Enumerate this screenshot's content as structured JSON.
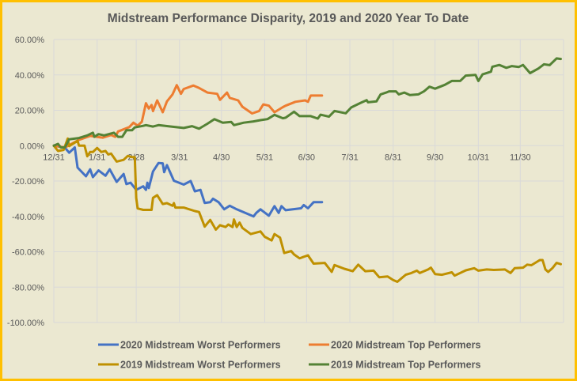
{
  "chart_data": {
    "type": "line",
    "title": "Midstream Performance Disparity, 2019 and 2020 Year To Date",
    "xlabel": "",
    "ylabel": "",
    "x_ticks": [
      "12/31",
      "1/31",
      "2/28",
      "3/31",
      "4/30",
      "5/31",
      "6/30",
      "7/31",
      "8/31",
      "9/30",
      "10/31",
      "11/30"
    ],
    "y_ticks": [
      "60.00%",
      "40.00%",
      "20.00%",
      "0.00%",
      "-20.00%",
      "-40.00%",
      "-60.00%",
      "-80.00%",
      "-100.00%"
    ],
    "ylim": [
      -100,
      60
    ],
    "y_unit": "%",
    "grid": true,
    "legend_position": "bottom",
    "series": [
      {
        "name": "2020 Midstream Worst Performers",
        "color": "#4472c4",
        "points": [
          [
            "12/31",
            0
          ],
          [
            "1/8",
            -1.2
          ],
          [
            "1/11",
            -4
          ],
          [
            "1/15",
            -1
          ],
          [
            "1/17",
            -12.4
          ],
          [
            "1/23",
            -17.3
          ],
          [
            "1/26",
            -13.4
          ],
          [
            "1/28",
            -17.8
          ],
          [
            "2/1",
            -14
          ],
          [
            "2/6",
            -17
          ],
          [
            "2/9",
            -13.4
          ],
          [
            "2/14",
            -20.5
          ],
          [
            "2/19",
            -16
          ],
          [
            "2/21",
            -21.7
          ],
          [
            "2/24",
            -21
          ],
          [
            "2/28",
            -25
          ],
          [
            "3/5",
            -23
          ],
          [
            "3/7",
            -25
          ],
          [
            "3/8",
            -21
          ],
          [
            "3/9",
            -24
          ],
          [
            "3/12",
            -14.6
          ],
          [
            "3/16",
            -9.8
          ],
          [
            "3/19",
            -10
          ],
          [
            "3/20",
            -15
          ],
          [
            "3/22",
            -11
          ],
          [
            "3/27",
            -19.8
          ],
          [
            "4/3",
            -22
          ],
          [
            "4/8",
            -20
          ],
          [
            "4/11",
            -25.8
          ],
          [
            "4/15",
            -25
          ],
          [
            "4/18",
            -32.4
          ],
          [
            "4/22",
            -32
          ],
          [
            "4/24",
            -30
          ],
          [
            "4/28",
            -32
          ],
          [
            "5/2",
            -36
          ],
          [
            "5/6",
            -34
          ],
          [
            "5/11",
            -36
          ],
          [
            "5/17",
            -38
          ],
          [
            "5/23",
            -40
          ],
          [
            "5/25",
            -38
          ],
          [
            "5/28",
            -36
          ],
          [
            "6/3",
            -39.6
          ],
          [
            "6/7",
            -34.2
          ],
          [
            "6/10",
            -38
          ],
          [
            "6/12",
            -34.2
          ],
          [
            "6/15",
            -36.5
          ],
          [
            "6/26",
            -35.4
          ],
          [
            "6/28",
            -33.6
          ],
          [
            "7/1",
            -35.4
          ],
          [
            "7/5",
            -32
          ],
          [
            "7/11",
            -32
          ]
        ]
      },
      {
        "name": "2020 Midstream Top Performers",
        "color": "#ed7d31",
        "points": [
          [
            "12/31",
            0
          ],
          [
            "1/8",
            -1
          ],
          [
            "1/18",
            3.3
          ],
          [
            "1/26",
            5.5
          ],
          [
            "2/4",
            4.5
          ],
          [
            "2/10",
            6
          ],
          [
            "2/13",
            5
          ],
          [
            "2/15",
            8
          ],
          [
            "2/23",
            10.5
          ],
          [
            "2/26",
            13
          ],
          [
            "3/1",
            11.3
          ],
          [
            "3/4",
            13.5
          ],
          [
            "3/7",
            24
          ],
          [
            "3/9",
            21
          ],
          [
            "3/11",
            23
          ],
          [
            "3/12",
            19.5
          ],
          [
            "3/15",
            25.6
          ],
          [
            "3/19",
            18.9
          ],
          [
            "3/22",
            25
          ],
          [
            "3/26",
            29
          ],
          [
            "3/29",
            34.2
          ],
          [
            "4/1",
            29.3
          ],
          [
            "4/3",
            32
          ],
          [
            "4/10",
            34
          ],
          [
            "4/14",
            32.6
          ],
          [
            "4/20",
            30
          ],
          [
            "4/27",
            29.3
          ],
          [
            "4/29",
            25.9
          ],
          [
            "5/4",
            30
          ],
          [
            "5/6",
            27
          ],
          [
            "5/12",
            25.6
          ],
          [
            "5/15",
            22
          ],
          [
            "5/22",
            18.2
          ],
          [
            "5/27",
            19.6
          ],
          [
            "5/30",
            23.3
          ],
          [
            "6/3",
            22.6
          ],
          [
            "6/7",
            18.9
          ],
          [
            "6/13",
            21.8
          ],
          [
            "6/15",
            22.6
          ],
          [
            "6/22",
            24.8
          ],
          [
            "6/29",
            25.6
          ],
          [
            "7/1",
            24.8
          ],
          [
            "7/3",
            28.3
          ],
          [
            "7/11",
            28.3
          ]
        ]
      },
      {
        "name": "2019 Midstream Worst Performers",
        "color": "#bf9000",
        "points": [
          [
            "12/31",
            0
          ],
          [
            "1/3",
            -3
          ],
          [
            "1/7",
            -2.4
          ],
          [
            "1/10",
            4
          ],
          [
            "1/11",
            -0.3
          ],
          [
            "1/17",
            2.7
          ],
          [
            "1/18",
            0
          ],
          [
            "1/22",
            0
          ],
          [
            "1/24",
            -6
          ],
          [
            "1/26",
            -3.6
          ],
          [
            "1/28",
            -3.6
          ],
          [
            "1/31",
            -1.3
          ],
          [
            "2/3",
            -3.6
          ],
          [
            "2/6",
            -3
          ],
          [
            "2/8",
            -5
          ],
          [
            "2/10",
            -4.5
          ],
          [
            "2/14",
            -9
          ],
          [
            "2/19",
            -8
          ],
          [
            "2/22",
            -5.8
          ],
          [
            "2/25",
            -6.5
          ],
          [
            "2/27",
            -6.5
          ],
          [
            "2/28",
            -29.5
          ],
          [
            "3/1",
            -35.5
          ],
          [
            "3/5",
            -36.3
          ],
          [
            "3/11",
            -36.3
          ],
          [
            "3/12",
            -29.5
          ],
          [
            "3/15",
            -28
          ],
          [
            "3/19",
            -33
          ],
          [
            "3/22",
            -32.5
          ],
          [
            "3/26",
            -34
          ],
          [
            "3/27",
            -32.5
          ],
          [
            "3/28",
            -35
          ],
          [
            "4/3",
            -35
          ],
          [
            "4/11",
            -37
          ],
          [
            "4/14",
            -37.5
          ],
          [
            "4/18",
            -45.8
          ],
          [
            "4/22",
            -42
          ],
          [
            "4/26",
            -47.5
          ],
          [
            "4/29",
            -45
          ],
          [
            "5/3",
            -46
          ],
          [
            "5/5",
            -44.6
          ],
          [
            "5/8",
            -46
          ],
          [
            "5/9",
            -41.7
          ],
          [
            "5/11",
            -46
          ],
          [
            "5/13",
            -43.5
          ],
          [
            "5/15",
            -46.5
          ],
          [
            "5/21",
            -50
          ],
          [
            "5/28",
            -48.5
          ],
          [
            "5/31",
            -51.5
          ],
          [
            "6/5",
            -53.6
          ],
          [
            "6/7",
            -50
          ],
          [
            "6/11",
            -52
          ],
          [
            "6/14",
            -60.7
          ],
          [
            "6/19",
            -59.6
          ],
          [
            "6/21",
            -61.5
          ],
          [
            "6/25",
            -63.7
          ],
          [
            "7/1",
            -62
          ],
          [
            "7/5",
            -66.7
          ],
          [
            "7/13",
            -66.3
          ],
          [
            "7/18",
            -71.4
          ],
          [
            "7/20",
            -67.5
          ],
          [
            "7/27",
            -69.6
          ],
          [
            "8/2",
            -71
          ],
          [
            "8/6",
            -67.3
          ],
          [
            "8/11",
            -71
          ],
          [
            "8/17",
            -70.7
          ],
          [
            "8/21",
            -74.4
          ],
          [
            "8/27",
            -74
          ],
          [
            "8/31",
            -76
          ],
          [
            "9/3",
            -77
          ],
          [
            "9/9",
            -73
          ],
          [
            "9/13",
            -72
          ],
          [
            "9/17",
            -70.7
          ],
          [
            "9/19",
            -72
          ],
          [
            "9/25",
            -70
          ],
          [
            "9/27",
            -69
          ],
          [
            "9/30",
            -72.6
          ],
          [
            "10/5",
            -73
          ],
          [
            "10/12",
            -71.6
          ],
          [
            "10/14",
            -73.5
          ],
          [
            "10/22",
            -70.5
          ],
          [
            "10/28",
            -69.3
          ],
          [
            "10/31",
            -70.7
          ],
          [
            "11/6",
            -70
          ],
          [
            "11/11",
            -70.3
          ],
          [
            "11/19",
            -70
          ],
          [
            "11/23",
            -72
          ],
          [
            "11/26",
            -69.3
          ],
          [
            "12/2",
            -69
          ],
          [
            "12/5",
            -67.3
          ],
          [
            "12/8",
            -67.6
          ],
          [
            "12/14",
            -64.7
          ],
          [
            "12/16",
            -64.7
          ],
          [
            "12/18",
            -70
          ],
          [
            "12/20",
            -71.4
          ],
          [
            "12/23",
            -69.3
          ],
          [
            "12/26",
            -66.3
          ],
          [
            "12/29",
            -67
          ]
        ]
      },
      {
        "name": "2019 Midstream Top Performers",
        "color": "#548235",
        "points": [
          [
            "12/31",
            0
          ],
          [
            "1/3",
            1
          ],
          [
            "1/5",
            -1
          ],
          [
            "1/8",
            -1
          ],
          [
            "1/11",
            3.6
          ],
          [
            "1/18",
            4.3
          ],
          [
            "1/24",
            5.8
          ],
          [
            "1/28",
            7.3
          ],
          [
            "1/29",
            5
          ],
          [
            "2/1",
            6.5
          ],
          [
            "2/5",
            5.8
          ],
          [
            "2/12",
            7.3
          ],
          [
            "2/15",
            5
          ],
          [
            "2/18",
            5
          ],
          [
            "2/21",
            8.7
          ],
          [
            "2/25",
            8.7
          ],
          [
            "2/27",
            10.3
          ],
          [
            "3/5",
            11.2
          ],
          [
            "3/7",
            11.6
          ],
          [
            "3/12",
            10.8
          ],
          [
            "3/16",
            11.6
          ],
          [
            "3/25",
            10.8
          ],
          [
            "4/3",
            10
          ],
          [
            "4/9",
            11
          ],
          [
            "4/14",
            9.6
          ],
          [
            "4/20",
            12.4
          ],
          [
            "4/25",
            15
          ],
          [
            "5/1",
            13
          ],
          [
            "5/7",
            13.4
          ],
          [
            "5/9",
            11.6
          ],
          [
            "5/16",
            13
          ],
          [
            "5/23",
            13.7
          ],
          [
            "5/28",
            14.4
          ],
          [
            "6/2",
            15
          ],
          [
            "6/7",
            17.4
          ],
          [
            "6/13",
            15.5
          ],
          [
            "6/15",
            15.8
          ],
          [
            "6/21",
            19.2
          ],
          [
            "6/25",
            16.7
          ],
          [
            "7/3",
            16.7
          ],
          [
            "7/8",
            15.3
          ],
          [
            "7/10",
            17.5
          ],
          [
            "7/16",
            16.4
          ],
          [
            "7/20",
            19.6
          ],
          [
            "7/28",
            18.3
          ],
          [
            "8/1",
            21.6
          ],
          [
            "8/8",
            24.3
          ],
          [
            "8/12",
            25.7
          ],
          [
            "8/13",
            24.5
          ],
          [
            "8/19",
            25
          ],
          [
            "8/22",
            29
          ],
          [
            "8/26",
            30
          ],
          [
            "8/28",
            30.7
          ],
          [
            "9/2",
            30.7
          ],
          [
            "9/4",
            29
          ],
          [
            "9/8",
            30
          ],
          [
            "9/12",
            28.6
          ],
          [
            "9/18",
            29
          ],
          [
            "9/22",
            30.7
          ],
          [
            "9/26",
            33.3
          ],
          [
            "9/30",
            32.2
          ],
          [
            "10/7",
            34.4
          ],
          [
            "10/12",
            36.6
          ],
          [
            "10/18",
            36.6
          ],
          [
            "10/22",
            39.6
          ],
          [
            "10/29",
            40
          ],
          [
            "10/31",
            36.6
          ],
          [
            "11/3",
            40.3
          ],
          [
            "11/9",
            41.8
          ],
          [
            "11/10",
            44.6
          ],
          [
            "11/15",
            45.6
          ],
          [
            "11/20",
            44
          ],
          [
            "11/24",
            45
          ],
          [
            "11/29",
            44.5
          ],
          [
            "12/2",
            45.6
          ],
          [
            "12/7",
            41
          ],
          [
            "12/13",
            43.6
          ],
          [
            "12/17",
            46
          ],
          [
            "12/21",
            45.5
          ],
          [
            "12/26",
            49.3
          ],
          [
            "12/29",
            49
          ]
        ]
      }
    ]
  }
}
